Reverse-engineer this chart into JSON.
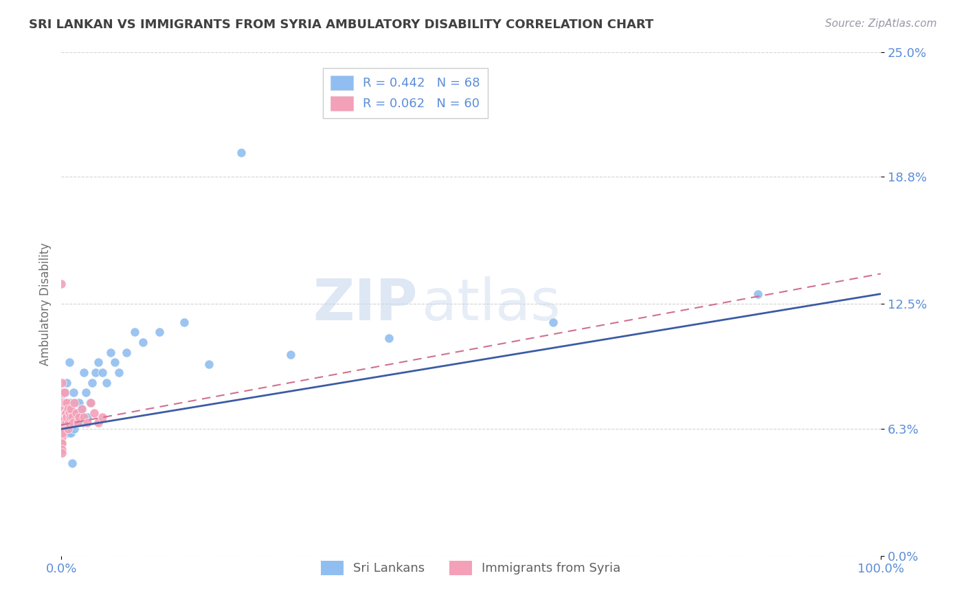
{
  "title": "SRI LANKAN VS IMMIGRANTS FROM SYRIA AMBULATORY DISABILITY CORRELATION CHART",
  "source_text": "Source: ZipAtlas.com",
  "ylabel": "Ambulatory Disability",
  "xlabel": "",
  "legend_label_1": "R = 0.442   N = 68",
  "legend_label_2": "R = 0.062   N = 60",
  "legend_bottom_1": "Sri Lankans",
  "legend_bottom_2": "Immigrants from Syria",
  "xlim": [
    0.0,
    1.0
  ],
  "ylim": [
    0.0,
    0.25
  ],
  "yticks": [
    0.0,
    0.063,
    0.125,
    0.188,
    0.25
  ],
  "ytick_labels": [
    "0.0%",
    "6.3%",
    "12.5%",
    "18.8%",
    "25.0%"
  ],
  "xtick_labels": [
    "0.0%",
    "100.0%"
  ],
  "xtick_positions": [
    0.0,
    1.0
  ],
  "watermark_zip": "ZIP",
  "watermark_atlas": "atlas",
  "color_blue": "#90BEF0",
  "color_pink": "#F4A0B8",
  "color_line_blue": "#3B5BA5",
  "color_line_pink": "#D07090",
  "color_grid": "#C8C8C8",
  "title_color": "#404040",
  "label_color": "#5B8DD9",
  "sri_lankan_x": [
    0.001,
    0.001,
    0.001,
    0.001,
    0.002,
    0.002,
    0.003,
    0.003,
    0.004,
    0.004,
    0.005,
    0.005,
    0.005,
    0.006,
    0.006,
    0.006,
    0.006,
    0.007,
    0.007,
    0.007,
    0.008,
    0.008,
    0.008,
    0.008,
    0.009,
    0.009,
    0.01,
    0.01,
    0.01,
    0.012,
    0.012,
    0.012,
    0.012,
    0.013,
    0.014,
    0.015,
    0.016,
    0.017,
    0.018,
    0.02,
    0.021,
    0.022,
    0.024,
    0.025,
    0.027,
    0.028,
    0.03,
    0.032,
    0.035,
    0.038,
    0.042,
    0.045,
    0.05,
    0.055,
    0.06,
    0.065,
    0.07,
    0.08,
    0.09,
    0.1,
    0.12,
    0.15,
    0.18,
    0.22,
    0.28,
    0.4,
    0.6,
    0.85
  ],
  "sri_lankan_y": [
    0.065,
    0.072,
    0.08,
    0.062,
    0.066,
    0.07,
    0.063,
    0.068,
    0.066,
    0.071,
    0.063,
    0.066,
    0.081,
    0.061,
    0.071,
    0.066,
    0.076,
    0.061,
    0.066,
    0.086,
    0.066,
    0.071,
    0.076,
    0.061,
    0.073,
    0.066,
    0.071,
    0.066,
    0.096,
    0.061,
    0.066,
    0.071,
    0.076,
    0.046,
    0.069,
    0.081,
    0.063,
    0.071,
    0.076,
    0.066,
    0.071,
    0.076,
    0.069,
    0.073,
    0.066,
    0.091,
    0.081,
    0.069,
    0.076,
    0.086,
    0.091,
    0.096,
    0.091,
    0.086,
    0.101,
    0.096,
    0.091,
    0.101,
    0.111,
    0.106,
    0.111,
    0.116,
    0.095,
    0.2,
    0.1,
    0.108,
    0.116,
    0.13
  ],
  "syria_x": [
    0.0005,
    0.0005,
    0.0005,
    0.0005,
    0.0005,
    0.0005,
    0.0005,
    0.0005,
    0.0005,
    0.0005,
    0.0005,
    0.0005,
    0.0005,
    0.0005,
    0.0005,
    0.0005,
    0.0005,
    0.0005,
    0.0005,
    0.0005,
    0.0008,
    0.0008,
    0.001,
    0.001,
    0.0015,
    0.0015,
    0.002,
    0.002,
    0.002,
    0.003,
    0.003,
    0.003,
    0.004,
    0.004,
    0.005,
    0.005,
    0.006,
    0.006,
    0.007,
    0.007,
    0.008,
    0.008,
    0.009,
    0.01,
    0.011,
    0.012,
    0.013,
    0.014,
    0.016,
    0.018,
    0.02,
    0.022,
    0.025,
    0.028,
    0.032,
    0.036,
    0.04,
    0.045,
    0.05,
    0.0
  ],
  "syria_y": [
    0.067,
    0.071,
    0.076,
    0.081,
    0.086,
    0.066,
    0.071,
    0.069,
    0.073,
    0.063,
    0.061,
    0.066,
    0.071,
    0.076,
    0.076,
    0.069,
    0.073,
    0.063,
    0.061,
    0.059,
    0.056,
    0.056,
    0.053,
    0.051,
    0.066,
    0.071,
    0.076,
    0.061,
    0.066,
    0.071,
    0.069,
    0.071,
    0.073,
    0.081,
    0.071,
    0.076,
    0.066,
    0.071,
    0.076,
    0.069,
    0.073,
    0.063,
    0.066,
    0.071,
    0.069,
    0.073,
    0.069,
    0.066,
    0.076,
    0.071,
    0.066,
    0.069,
    0.073,
    0.069,
    0.066,
    0.076,
    0.071,
    0.066,
    0.069,
    0.135
  ]
}
